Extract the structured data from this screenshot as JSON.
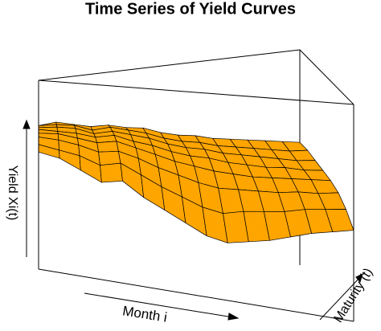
{
  "chart_data": {
    "type": "surface",
    "title": "Time Series of Yield Curves",
    "xlabel": "Month i",
    "ylabel": "Maturity (t)",
    "zlabel": "Yield  Xi(t)",
    "zlim": [
      0,
      1
    ],
    "color": "#FFA500",
    "z": [
      [
        0.62,
        0.66,
        0.7,
        0.72,
        0.74,
        0.75,
        0.76,
        0.76
      ],
      [
        0.6,
        0.64,
        0.69,
        0.72,
        0.73,
        0.75,
        0.76,
        0.77
      ],
      [
        0.55,
        0.62,
        0.67,
        0.7,
        0.72,
        0.74,
        0.75,
        0.75
      ],
      [
        0.5,
        0.58,
        0.64,
        0.68,
        0.7,
        0.71,
        0.72,
        0.73
      ],
      [
        0.52,
        0.6,
        0.65,
        0.69,
        0.71,
        0.72,
        0.73,
        0.73
      ],
      [
        0.45,
        0.55,
        0.62,
        0.66,
        0.68,
        0.7,
        0.71,
        0.71
      ],
      [
        0.4,
        0.5,
        0.58,
        0.63,
        0.66,
        0.68,
        0.69,
        0.7
      ],
      [
        0.35,
        0.46,
        0.55,
        0.6,
        0.63,
        0.65,
        0.66,
        0.67
      ],
      [
        0.3,
        0.42,
        0.52,
        0.58,
        0.61,
        0.63,
        0.64,
        0.65
      ],
      [
        0.28,
        0.4,
        0.5,
        0.56,
        0.6,
        0.62,
        0.63,
        0.64
      ],
      [
        0.3,
        0.42,
        0.5,
        0.55,
        0.58,
        0.6,
        0.61,
        0.62
      ],
      [
        0.32,
        0.43,
        0.5,
        0.54,
        0.57,
        0.59,
        0.6,
        0.61
      ],
      [
        0.35,
        0.44,
        0.5,
        0.54,
        0.56,
        0.58,
        0.59,
        0.6
      ],
      [
        0.38,
        0.46,
        0.51,
        0.54,
        0.56,
        0.57,
        0.58,
        0.59
      ],
      [
        0.4,
        0.47,
        0.51,
        0.54,
        0.55,
        0.56,
        0.57,
        0.58
      ],
      [
        0.42,
        0.48,
        0.52,
        0.54,
        0.55,
        0.56,
        0.57,
        0.57
      ]
    ]
  }
}
